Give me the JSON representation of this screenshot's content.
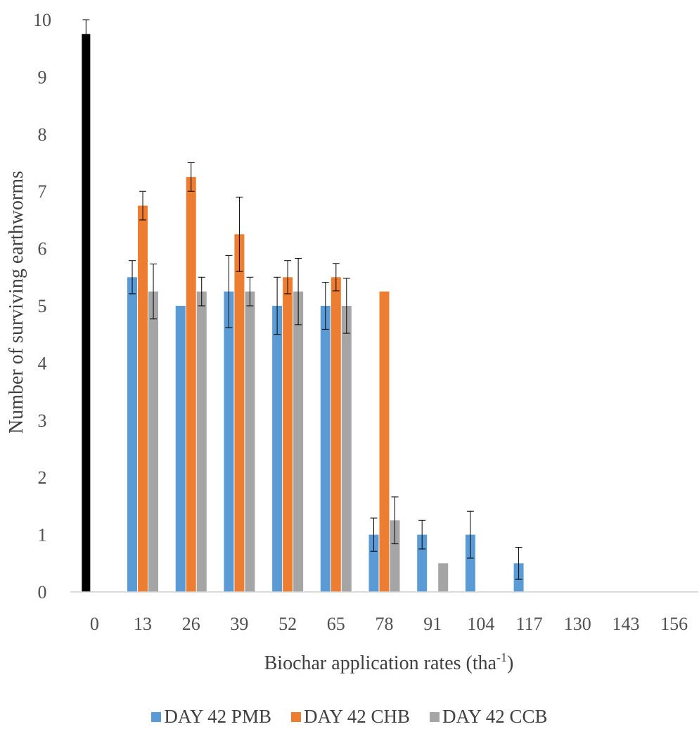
{
  "chart_data": {
    "type": "bar",
    "xlabel": "Biochar application rates (tha",
    "xlabel_sup": "-1",
    "xlabel_end": ")",
    "ylabel": "Number of surviving earthworms",
    "ylim": [
      0,
      10
    ],
    "y_ticks": [
      "0",
      "1",
      "2",
      "3",
      "4",
      "5",
      "6",
      "7",
      "8",
      "9",
      "10"
    ],
    "categories": [
      "0",
      "13",
      "26",
      "39",
      "52",
      "65",
      "78",
      "91",
      "104",
      "117",
      "130",
      "143",
      "156"
    ],
    "control": {
      "category": "0",
      "value": 9.75,
      "error": 0.25,
      "color": "#000000"
    },
    "series": [
      {
        "name": "DAY 42 PMB",
        "color": "#5b9bd5",
        "values": [
          null,
          5.5,
          5.0,
          5.25,
          5.0,
          5.0,
          1.0,
          1.0,
          1.0,
          0.5,
          0,
          0,
          0
        ],
        "errors": [
          null,
          0.29,
          0,
          0.63,
          0.5,
          0.41,
          0.29,
          0.25,
          0.41,
          0.28,
          0,
          0,
          0
        ]
      },
      {
        "name": "DAY 42 CHB",
        "color": "#ed7d31",
        "values": [
          null,
          6.75,
          7.25,
          6.25,
          5.5,
          5.5,
          5.25,
          0,
          0,
          0,
          0,
          0,
          0
        ],
        "errors": [
          null,
          0.25,
          0.25,
          0.65,
          0.29,
          0.24,
          0,
          0,
          0,
          0,
          0,
          0,
          0
        ]
      },
      {
        "name": "DAY 42 CCB",
        "color": "#a5a5a5",
        "values": [
          null,
          5.25,
          5.25,
          5.25,
          5.25,
          5.0,
          1.25,
          0.5,
          0,
          0,
          0,
          0,
          0
        ],
        "errors": [
          null,
          0.48,
          0.25,
          0.25,
          0.58,
          0.48,
          0.41,
          0,
          0,
          0,
          0,
          0,
          0
        ]
      }
    ],
    "legend_position": "bottom",
    "grid": false
  }
}
